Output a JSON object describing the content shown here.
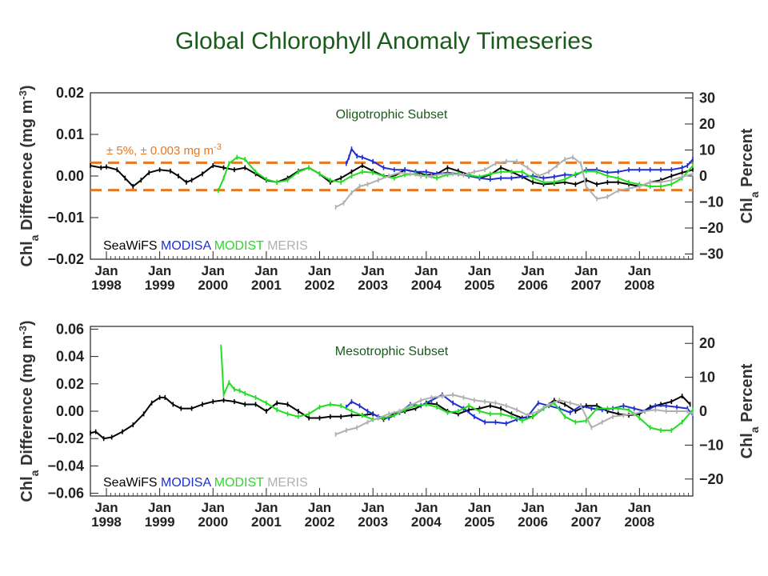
{
  "title": "Global Chlorophyll Anomaly Timeseries",
  "legend": [
    {
      "label": "SeaWiFS",
      "color": "#000000"
    },
    {
      "label": "MODISA",
      "color": "#1f2fd0"
    },
    {
      "label": "MODIST",
      "color": "#22dd22"
    },
    {
      "label": "MERIS",
      "color": "#b0b0b0"
    }
  ],
  "threshold_color": "#e87722",
  "chart_data": [
    {
      "type": "line",
      "subtitle": "Oligotrophic Subset",
      "ylabel": "Chla Difference (mg m-3)",
      "ylabel_parts": [
        "Chl",
        "a",
        " Difference (mg m",
        "-3",
        ")"
      ],
      "y2label_parts": [
        "Chl",
        "a",
        " Percent"
      ],
      "ylim": [
        -0.02,
        0.02
      ],
      "yticks": [
        "0.02",
        "0.01",
        "0.00",
        "−0.01",
        "−0.02"
      ],
      "ytick_values": [
        0.02,
        0.01,
        0.0,
        -0.01,
        -0.02
      ],
      "y2lim": [
        -32,
        32
      ],
      "y2ticks": [
        "30",
        "20",
        "10",
        "0",
        "−10",
        "−20",
        "−30"
      ],
      "y2tick_values": [
        30,
        20,
        10,
        0,
        -10,
        -20,
        -30
      ],
      "xlim": [
        1997.7,
        2009.0
      ],
      "xticks": [
        {
          "x": 1998,
          "top": "Jan",
          "bottom": "1998"
        },
        {
          "x": 1999,
          "top": "Jan",
          "bottom": "1999"
        },
        {
          "x": 2000,
          "top": "Jan",
          "bottom": "2000"
        },
        {
          "x": 2001,
          "top": "Jan",
          "bottom": "2001"
        },
        {
          "x": 2002,
          "top": "Jan",
          "bottom": "2002"
        },
        {
          "x": 2003,
          "top": "Jan",
          "bottom": "2003"
        },
        {
          "x": 2004,
          "top": "Jan",
          "bottom": "2004"
        },
        {
          "x": 2005,
          "top": "Jan",
          "bottom": "2005"
        },
        {
          "x": 2006,
          "top": "Jan",
          "bottom": "2006"
        },
        {
          "x": 2007,
          "top": "Jan",
          "bottom": "2007"
        },
        {
          "x": 2008,
          "top": "Jan",
          "bottom": "2008"
        }
      ],
      "threshold_label": "± 5%, ± 0.003 mg m",
      "threshold_label_sup": "-3",
      "thresholds": [
        0.0032,
        -0.0034
      ],
      "series": [
        {
          "name": "SeaWiFS",
          "color": "#000000",
          "x": [
            1997.7,
            1997.9,
            1998.0,
            1998.2,
            1998.35,
            1998.5,
            1998.65,
            1998.8,
            1999.0,
            1999.2,
            1999.35,
            1999.5,
            1999.6,
            1999.8,
            2000.0,
            2000.2,
            2000.4,
            2000.6,
            2000.8,
            2001.0,
            2001.2,
            2001.4,
            2001.6,
            2001.8,
            2002.0,
            2002.2,
            2002.4,
            2002.6,
            2002.8,
            2003.0,
            2003.2,
            2003.4,
            2003.6,
            2003.8,
            2004.0,
            2004.2,
            2004.4,
            2004.6,
            2004.8,
            2005.0,
            2005.2,
            2005.4,
            2005.6,
            2005.8,
            2006.0,
            2006.2,
            2006.4,
            2006.6,
            2006.8,
            2007.0,
            2007.2,
            2007.4,
            2007.6,
            2007.8,
            2008.0,
            2008.2,
            2008.4,
            2008.6,
            2008.8,
            2009.0
          ],
          "y": [
            0.0025,
            0.002,
            0.0022,
            0.0015,
            -0.0005,
            -0.0025,
            -0.001,
            0.0008,
            0.0015,
            0.0012,
            0.0,
            -0.0015,
            -0.001,
            0.0005,
            0.0025,
            0.002,
            0.0015,
            0.002,
            0.0005,
            -0.001,
            -0.0015,
            -0.0005,
            0.0012,
            0.002,
            0.0005,
            -0.0015,
            -0.0005,
            0.001,
            0.0025,
            0.0012,
            0.0,
            0.0,
            0.0015,
            0.001,
            0.0002,
            0.0005,
            0.002,
            0.0012,
            0.0003,
            -0.0005,
            0.0003,
            0.002,
            0.001,
            -0.0002,
            -0.0015,
            -0.002,
            -0.0018,
            -0.0015,
            -0.002,
            -0.001,
            -0.002,
            -0.0015,
            -0.0015,
            -0.002,
            -0.0025,
            -0.0015,
            -0.001,
            0.0,
            0.0008,
            0.0015
          ]
        },
        {
          "name": "MODISA",
          "color": "#1f2fd0",
          "x": [
            2002.5,
            2002.55,
            2002.6,
            2002.7,
            2002.8,
            2003.0,
            2003.2,
            2003.4,
            2003.6,
            2003.8,
            2004.0,
            2004.2,
            2004.4,
            2004.6,
            2004.8,
            2005.0,
            2005.2,
            2005.4,
            2005.6,
            2005.8,
            2006.0,
            2006.2,
            2006.4,
            2006.6,
            2006.8,
            2007.0,
            2007.2,
            2007.4,
            2007.6,
            2007.8,
            2008.0,
            2008.2,
            2008.4,
            2008.6,
            2008.8,
            2008.9,
            2009.0
          ],
          "y": [
            0.003,
            0.0045,
            0.0065,
            0.0048,
            0.0045,
            0.0035,
            0.002,
            0.0015,
            0.0015,
            0.001,
            0.001,
            0.0005,
            0.0008,
            0.0005,
            0.0,
            -0.0005,
            -0.0008,
            -0.0005,
            -0.0005,
            -0.0002,
            0.0,
            -0.0005,
            -0.0002,
            0.0003,
            0.0002,
            0.0015,
            0.0015,
            0.0008,
            0.001,
            0.0015,
            0.0015,
            0.0015,
            0.0015,
            0.0015,
            0.002,
            0.0025,
            0.004
          ]
        },
        {
          "name": "MODIST",
          "color": "#22dd22",
          "x": [
            2000.1,
            2000.2,
            2000.3,
            2000.45,
            2000.6,
            2000.8,
            2001.0,
            2001.2,
            2001.4,
            2001.6,
            2001.8,
            2002.0,
            2002.2,
            2002.4,
            2002.6,
            2002.8,
            2003.0,
            2003.2,
            2003.4,
            2003.6,
            2003.8,
            2004.0,
            2004.2,
            2004.4,
            2004.6,
            2004.8,
            2005.0,
            2005.2,
            2005.4,
            2005.6,
            2005.8,
            2006.0,
            2006.2,
            2006.4,
            2006.6,
            2006.8,
            2007.0,
            2007.2,
            2007.4,
            2007.6,
            2007.8,
            2008.0,
            2008.2,
            2008.4,
            2008.6,
            2008.8,
            2009.0
          ],
          "y": [
            -0.0035,
            -0.0005,
            0.003,
            0.0045,
            0.004,
            0.001,
            -0.0008,
            -0.0015,
            -0.001,
            0.001,
            0.002,
            0.0005,
            -0.001,
            -0.0015,
            0.0,
            0.001,
            0.0008,
            0.0,
            -0.0005,
            0.0003,
            0.0005,
            0.0,
            -0.0005,
            0.0003,
            0.0005,
            0.0002,
            -0.0002,
            0.0005,
            0.001,
            0.001,
            0.001,
            -0.0005,
            -0.0015,
            -0.0015,
            -0.0008,
            0.0005,
            0.0012,
            0.001,
            0.0,
            -0.0005,
            -0.0015,
            -0.002,
            -0.0025,
            -0.0025,
            -0.002,
            -0.0005,
            0.0025
          ]
        },
        {
          "name": "MERIS",
          "color": "#b0b0b0",
          "x": [
            2002.3,
            2002.45,
            2002.6,
            2002.75,
            2002.9,
            2003.1,
            2003.3,
            2003.5,
            2003.7,
            2003.9,
            2004.1,
            2004.3,
            2004.5,
            2004.7,
            2004.9,
            2005.1,
            2005.3,
            2005.5,
            2005.7,
            2005.9,
            2006.1,
            2006.3,
            2006.45,
            2006.6,
            2006.75,
            2006.9,
            2007.0,
            2007.2,
            2007.4,
            2007.6,
            2007.8,
            2008.0,
            2008.2,
            2008.4,
            2008.6,
            2008.8,
            2009.0
          ],
          "y": [
            -0.0075,
            -0.0065,
            -0.004,
            -0.0025,
            -0.002,
            -0.001,
            0.0,
            0.0008,
            0.0005,
            0.0,
            0.0,
            0.0005,
            0.0005,
            0.0002,
            0.001,
            0.0015,
            0.003,
            0.0035,
            0.0035,
            0.002,
            0.0,
            0.001,
            0.0025,
            0.004,
            0.0045,
            0.003,
            -0.0025,
            -0.0055,
            -0.005,
            -0.0035,
            -0.003,
            -0.0025,
            -0.0015,
            -0.0015,
            -0.001,
            -0.0002,
            0.0005
          ]
        }
      ]
    },
    {
      "type": "line",
      "subtitle": "Mesotrophic Subset",
      "ylabel": "Chla Difference (mg m-3)",
      "ylabel_parts": [
        "Chl",
        "a",
        " Difference (mg m",
        "-3",
        ")"
      ],
      "y2label_parts": [
        "Chl",
        "a",
        " Percent"
      ],
      "ylim": [
        -0.062,
        0.062
      ],
      "yticks": [
        "0.06",
        "0.04",
        "0.02",
        "0.00",
        "−0.02",
        "−0.04",
        "−0.06"
      ],
      "ytick_values": [
        0.06,
        0.04,
        0.02,
        0.0,
        -0.02,
        -0.04,
        -0.06
      ],
      "y2lim": [
        -25,
        25
      ],
      "y2ticks": [
        "20",
        "10",
        "0",
        "−10",
        "−20"
      ],
      "y2tick_values": [
        20,
        10,
        0,
        -10,
        -20
      ],
      "xlim": [
        1997.7,
        2009.0
      ],
      "xticks": [
        {
          "x": 1998,
          "top": "Jan",
          "bottom": "1998"
        },
        {
          "x": 1999,
          "top": "Jan",
          "bottom": "1999"
        },
        {
          "x": 2000,
          "top": "Jan",
          "bottom": "2000"
        },
        {
          "x": 2001,
          "top": "Jan",
          "bottom": "2001"
        },
        {
          "x": 2002,
          "top": "Jan",
          "bottom": "2002"
        },
        {
          "x": 2003,
          "top": "Jan",
          "bottom": "2003"
        },
        {
          "x": 2004,
          "top": "Jan",
          "bottom": "2004"
        },
        {
          "x": 2005,
          "top": "Jan",
          "bottom": "2005"
        },
        {
          "x": 2006,
          "top": "Jan",
          "bottom": "2006"
        },
        {
          "x": 2007,
          "top": "Jan",
          "bottom": "2007"
        },
        {
          "x": 2008,
          "top": "Jan",
          "bottom": "2008"
        }
      ],
      "series": [
        {
          "name": "SeaWiFS",
          "color": "#000000",
          "x": [
            1997.7,
            1997.8,
            1997.95,
            1998.1,
            1998.3,
            1998.5,
            1998.7,
            1998.85,
            1999.0,
            1999.1,
            1999.25,
            1999.4,
            1999.6,
            1999.8,
            2000.0,
            2000.2,
            2000.4,
            2000.6,
            2000.8,
            2001.0,
            2001.2,
            2001.4,
            2001.6,
            2001.8,
            2002.0,
            2002.2,
            2002.4,
            2002.6,
            2002.8,
            2003.0,
            2003.2,
            2003.4,
            2003.6,
            2003.8,
            2004.0,
            2004.2,
            2004.4,
            2004.6,
            2004.8,
            2005.0,
            2005.2,
            2005.4,
            2005.6,
            2005.8,
            2006.0,
            2006.2,
            2006.4,
            2006.6,
            2006.8,
            2007.0,
            2007.2,
            2007.4,
            2007.6,
            2007.8,
            2008.0,
            2008.2,
            2008.4,
            2008.6,
            2008.8,
            2008.95
          ],
          "y": [
            -0.016,
            -0.015,
            -0.02,
            -0.019,
            -0.015,
            -0.01,
            -0.002,
            0.006,
            0.01,
            0.01,
            0.005,
            0.002,
            0.002,
            0.005,
            0.007,
            0.008,
            0.007,
            0.005,
            0.005,
            0.0,
            0.006,
            0.005,
            0.0,
            -0.005,
            -0.005,
            -0.004,
            -0.004,
            -0.003,
            -0.003,
            -0.002,
            -0.006,
            -0.002,
            0.0,
            0.002,
            0.006,
            0.005,
            0.0,
            -0.002,
            0.001,
            0.002,
            0.004,
            0.002,
            -0.002,
            -0.005,
            -0.004,
            0.002,
            0.008,
            0.005,
            0.0,
            0.004,
            0.004,
            0.0,
            -0.002,
            -0.003,
            -0.002,
            0.003,
            0.005,
            0.007,
            0.011,
            0.005
          ]
        },
        {
          "name": "MODISA",
          "color": "#1f2fd0",
          "x": [
            2002.5,
            2002.6,
            2002.75,
            2002.9,
            2003.1,
            2003.3,
            2003.5,
            2003.7,
            2003.9,
            2004.1,
            2004.3,
            2004.5,
            2004.7,
            2004.9,
            2005.1,
            2005.3,
            2005.5,
            2005.7,
            2005.9,
            2006.1,
            2006.3,
            2006.5,
            2006.7,
            2006.9,
            2007.1,
            2007.3,
            2007.5,
            2007.7,
            2007.9,
            2008.1,
            2008.3,
            2008.5,
            2008.7,
            2008.9,
            2009.0
          ],
          "y": [
            0.003,
            0.007,
            0.004,
            0.0,
            -0.004,
            -0.005,
            -0.001,
            0.005,
            0.004,
            0.008,
            0.012,
            0.006,
            0.002,
            -0.004,
            -0.008,
            -0.008,
            -0.009,
            -0.006,
            -0.004,
            0.006,
            0.004,
            0.002,
            -0.001,
            0.004,
            0.002,
            0.001,
            0.002,
            0.004,
            0.002,
            0.0,
            0.004,
            0.004,
            0.003,
            0.002,
            -0.003
          ]
        },
        {
          "name": "MODIST",
          "color": "#22dd22",
          "x": [
            2000.15,
            2000.2,
            2000.3,
            2000.4,
            2000.5,
            2000.6,
            2000.8,
            2001.0,
            2001.2,
            2001.4,
            2001.6,
            2001.8,
            2002.0,
            2002.2,
            2002.4,
            2002.6,
            2002.8,
            2003.0,
            2003.2,
            2003.4,
            2003.6,
            2003.8,
            2004.0,
            2004.2,
            2004.4,
            2004.6,
            2004.8,
            2005.0,
            2005.2,
            2005.4,
            2005.6,
            2005.8,
            2006.0,
            2006.2,
            2006.4,
            2006.6,
            2006.8,
            2007.0,
            2007.2,
            2007.4,
            2007.6,
            2007.8,
            2008.0,
            2008.2,
            2008.4,
            2008.6,
            2008.8,
            2009.0
          ],
          "y": [
            0.047,
            0.012,
            0.021,
            0.016,
            0.015,
            0.013,
            0.01,
            0.006,
            0.001,
            -0.002,
            -0.004,
            -0.002,
            0.003,
            0.005,
            0.004,
            0.0,
            -0.003,
            -0.006,
            -0.005,
            -0.003,
            0.001,
            0.004,
            0.005,
            0.003,
            -0.001,
            0.0,
            0.004,
            0.0,
            -0.002,
            -0.002,
            -0.004,
            -0.007,
            -0.004,
            0.002,
            0.006,
            -0.004,
            -0.008,
            -0.007,
            0.002,
            0.002,
            0.002,
            0.001,
            -0.005,
            -0.012,
            -0.014,
            -0.014,
            -0.008,
            0.001
          ]
        },
        {
          "name": "MERIS",
          "color": "#b0b0b0",
          "x": [
            2002.3,
            2002.5,
            2002.7,
            2002.9,
            2003.1,
            2003.3,
            2003.5,
            2003.7,
            2003.9,
            2004.1,
            2004.3,
            2004.5,
            2004.7,
            2004.9,
            2005.1,
            2005.3,
            2005.5,
            2005.7,
            2005.9,
            2006.1,
            2006.3,
            2006.5,
            2006.7,
            2006.9,
            2007.1,
            2007.3,
            2007.5,
            2007.7,
            2007.9,
            2008.1,
            2008.3,
            2008.5,
            2008.7,
            2008.9,
            2009.0
          ],
          "y": [
            -0.017,
            -0.014,
            -0.012,
            -0.008,
            -0.005,
            -0.002,
            0.0,
            0.004,
            0.008,
            0.01,
            0.011,
            0.012,
            0.01,
            0.008,
            0.007,
            0.006,
            0.004,
            0.001,
            -0.003,
            0.0,
            0.005,
            0.008,
            0.006,
            0.004,
            -0.012,
            -0.008,
            -0.004,
            -0.003,
            -0.002,
            0.0,
            0.001,
            0.0,
            0.0,
            0.0,
            -0.002
          ]
        }
      ]
    }
  ]
}
